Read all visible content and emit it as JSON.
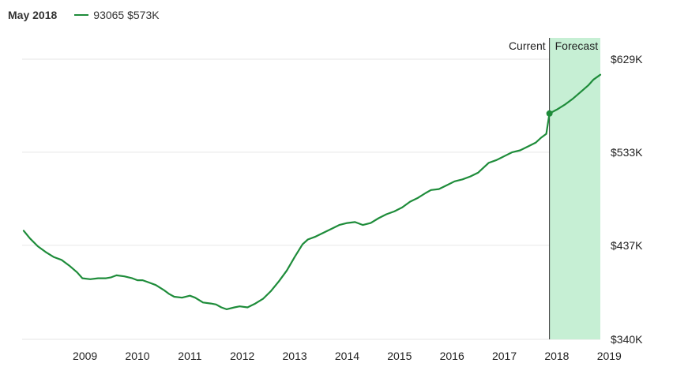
{
  "legend": {
    "date": "May 2018",
    "series_label": "93065 $573K"
  },
  "colors": {
    "line": "#1e8c3a",
    "forecast_fill": "#c6efd4",
    "grid": "#e6e6e6",
    "divider": "#333333"
  },
  "chart_data": {
    "type": "line",
    "title": "",
    "xlabel": "",
    "ylabel": "",
    "x_tick_labels": [
      "2009",
      "2010",
      "2011",
      "2012",
      "2013",
      "2014",
      "2015",
      "2016",
      "2017",
      "2018",
      "2019"
    ],
    "x_ticks": [
      2009,
      2010,
      2011,
      2012,
      2013,
      2014,
      2015,
      2016,
      2017,
      2018,
      2019
    ],
    "y_tick_labels": [
      "$629K",
      "$533K",
      "$437K",
      "$340K"
    ],
    "y_ticks": [
      629,
      533,
      437,
      340
    ],
    "ylim": [
      340,
      629
    ],
    "xlim": [
      2008.3,
      2019.33
    ],
    "y_unit": "thousand USD",
    "region_labels": [
      "Current",
      "Forecast"
    ],
    "current_x": 2018.36,
    "current_value": 573,
    "grid": true,
    "series": [
      {
        "points": [
          [
            2008.33,
            452
          ],
          [
            2008.45,
            444
          ],
          [
            2008.6,
            436
          ],
          [
            2008.75,
            430
          ],
          [
            2008.9,
            425
          ],
          [
            2009.05,
            422
          ],
          [
            2009.2,
            416
          ],
          [
            2009.35,
            409
          ],
          [
            2009.45,
            403
          ],
          [
            2009.6,
            402
          ],
          [
            2009.75,
            403
          ],
          [
            2009.9,
            403
          ],
          [
            2010.0,
            404
          ],
          [
            2010.1,
            406
          ],
          [
            2010.25,
            405
          ],
          [
            2010.4,
            403
          ],
          [
            2010.5,
            401
          ],
          [
            2010.6,
            401
          ],
          [
            2010.7,
            399
          ],
          [
            2010.85,
            396
          ],
          [
            2011.0,
            391
          ],
          [
            2011.1,
            387
          ],
          [
            2011.2,
            384
          ],
          [
            2011.35,
            383
          ],
          [
            2011.5,
            385
          ],
          [
            2011.6,
            383
          ],
          [
            2011.75,
            378
          ],
          [
            2011.9,
            377
          ],
          [
            2012.0,
            376
          ],
          [
            2012.1,
            373
          ],
          [
            2012.2,
            371
          ],
          [
            2012.35,
            373
          ],
          [
            2012.45,
            374
          ],
          [
            2012.6,
            373
          ],
          [
            2012.75,
            377
          ],
          [
            2012.9,
            382
          ],
          [
            2013.05,
            390
          ],
          [
            2013.2,
            400
          ],
          [
            2013.35,
            411
          ],
          [
            2013.5,
            425
          ],
          [
            2013.65,
            438
          ],
          [
            2013.75,
            443
          ],
          [
            2013.9,
            446
          ],
          [
            2014.05,
            450
          ],
          [
            2014.2,
            454
          ],
          [
            2014.35,
            458
          ],
          [
            2014.5,
            460
          ],
          [
            2014.65,
            461
          ],
          [
            2014.8,
            458
          ],
          [
            2014.95,
            460
          ],
          [
            2015.1,
            465
          ],
          [
            2015.25,
            469
          ],
          [
            2015.4,
            472
          ],
          [
            2015.55,
            476
          ],
          [
            2015.7,
            482
          ],
          [
            2015.85,
            486
          ],
          [
            2016.0,
            491
          ],
          [
            2016.1,
            494
          ],
          [
            2016.25,
            495
          ],
          [
            2016.4,
            499
          ],
          [
            2016.55,
            503
          ],
          [
            2016.7,
            505
          ],
          [
            2016.85,
            508
          ],
          [
            2017.0,
            512
          ],
          [
            2017.1,
            517
          ],
          [
            2017.2,
            522
          ],
          [
            2017.35,
            525
          ],
          [
            2017.5,
            529
          ],
          [
            2017.65,
            533
          ],
          [
            2017.8,
            535
          ],
          [
            2017.95,
            539
          ],
          [
            2018.1,
            543
          ],
          [
            2018.2,
            548
          ],
          [
            2018.3,
            552
          ],
          [
            2018.36,
            573
          ]
        ]
      }
    ],
    "forecast": {
      "points": [
        [
          2018.36,
          573
        ],
        [
          2018.5,
          577
        ],
        [
          2018.65,
          582
        ],
        [
          2018.8,
          588
        ],
        [
          2018.95,
          595
        ],
        [
          2019.1,
          602
        ],
        [
          2019.2,
          608
        ],
        [
          2019.33,
          613
        ]
      ]
    }
  }
}
